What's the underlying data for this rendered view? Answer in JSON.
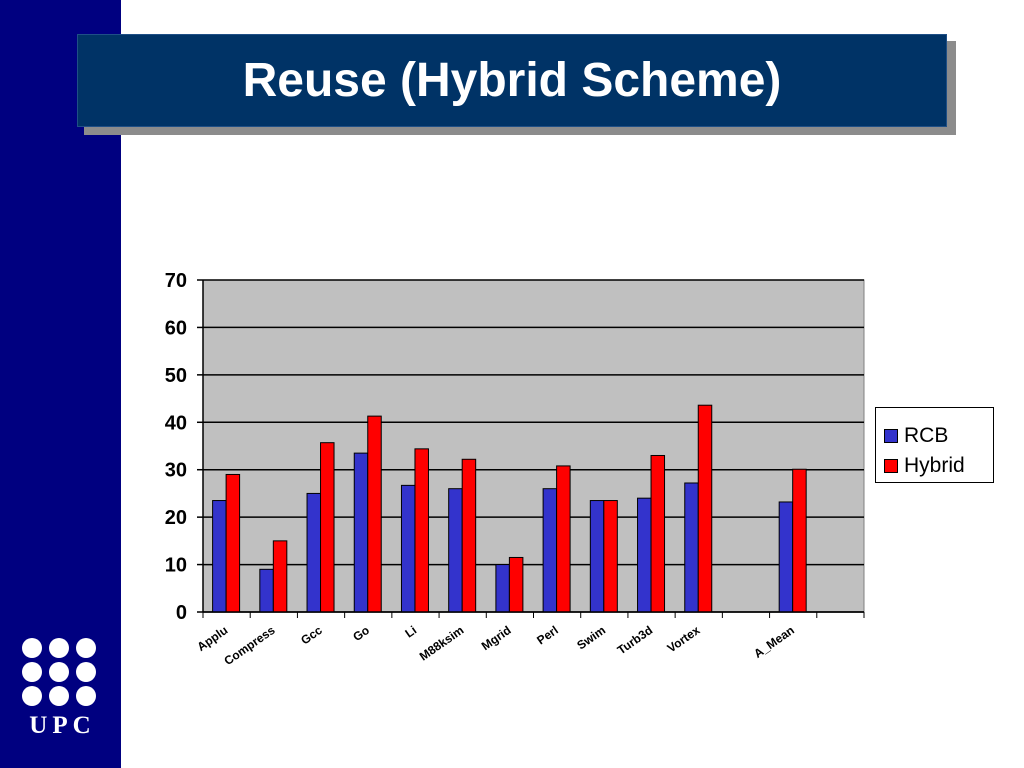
{
  "slide": {
    "title": "Reuse (Hybrid Scheme)"
  },
  "logo": {
    "text": "UPC"
  },
  "colors": {
    "sidebar": "#000080",
    "title_bg": "#003366",
    "plot_bg": "#c0c0c0",
    "rcb": "#3333cc",
    "hybrid": "#ff0000"
  },
  "chart_data": {
    "type": "bar",
    "categories": [
      "Applu",
      "Compress",
      "Gcc",
      "Go",
      "Li",
      "M88ksim",
      "Mgrid",
      "Perl",
      "Swim",
      "Turb3d",
      "Vortex",
      "",
      "A_Mean",
      ""
    ],
    "series": [
      {
        "name": "RCB",
        "color": "#3333cc",
        "values": [
          23.5,
          9,
          25,
          33.5,
          26.7,
          26,
          10,
          26,
          23.5,
          24,
          27.2,
          null,
          23.2,
          null
        ]
      },
      {
        "name": "Hybrid",
        "color": "#ff0000",
        "values": [
          29,
          15,
          35.7,
          41.3,
          34.4,
          32.2,
          11.5,
          30.8,
          23.5,
          33,
          43.6,
          null,
          30.1,
          null
        ]
      }
    ],
    "ylim": [
      0,
      70
    ],
    "yticks": [
      0,
      10,
      20,
      30,
      40,
      50,
      60,
      70
    ],
    "grid": true,
    "legend": "right"
  }
}
